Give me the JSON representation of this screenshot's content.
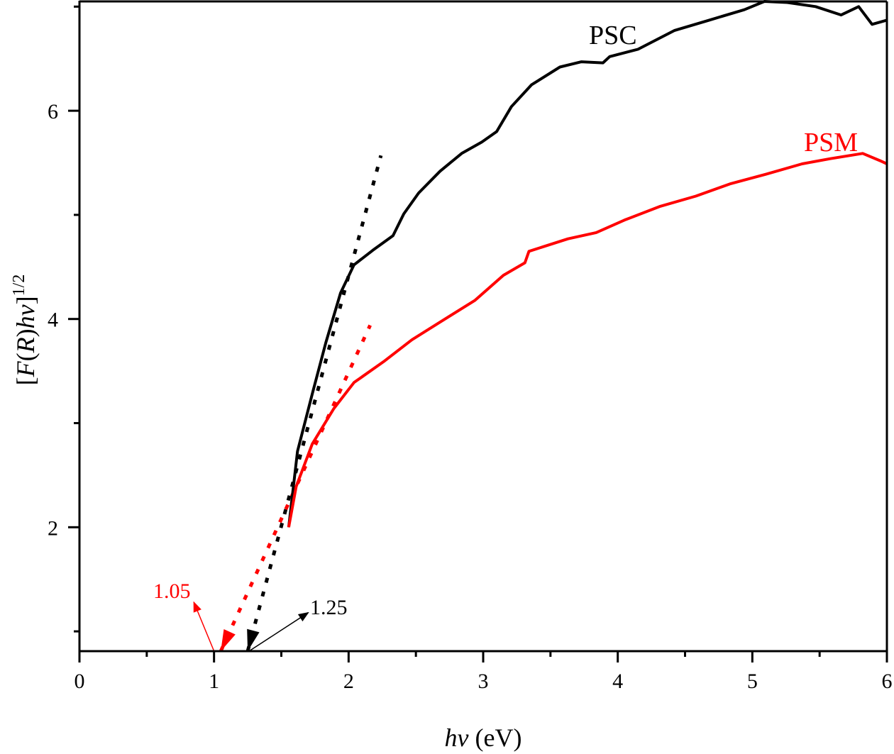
{
  "chart_data": {
    "type": "line",
    "title": "",
    "xlabel_italic": "hv",
    "xlabel_rest": " (eV)",
    "ylabel_parts": [
      "[",
      "F",
      "(",
      "R",
      ")",
      "hv",
      "]"
    ],
    "ylabel_superscript": "1/2",
    "xlim": [
      0,
      6
    ],
    "ylim": [
      0.81,
      7.05
    ],
    "xticks": [
      0,
      1,
      2,
      3,
      4,
      5,
      6
    ],
    "xtick_labels": [
      "0",
      "1",
      "2",
      "3",
      "4",
      "5",
      "6"
    ],
    "xminor_ticks": [
      0.5,
      1.5,
      2.5,
      3.5,
      4.5,
      5.5
    ],
    "yticks": [
      2,
      4,
      6
    ],
    "ytick_labels": [
      "2",
      "4",
      "6"
    ],
    "yminor_ticks": [
      1,
      3,
      5,
      7
    ],
    "grid": false,
    "legend": "none (inline series labels)",
    "series": [
      {
        "name": "PSC",
        "color": "#000000",
        "style": "solid",
        "label_position": "top-center",
        "x": [
          1.555,
          1.62,
          1.73,
          1.83,
          1.94,
          2.04,
          2.18,
          2.33,
          2.41,
          2.52,
          2.68,
          2.84,
          2.99,
          3.1,
          3.21,
          3.36,
          3.57,
          3.73,
          3.89,
          3.94,
          4.15,
          4.42,
          4.68,
          4.94,
          5.09,
          5.26,
          5.47,
          5.66,
          5.79,
          5.89,
          6.0
        ],
        "y": [
          2.0,
          2.73,
          3.28,
          3.77,
          4.25,
          4.52,
          4.66,
          4.8,
          5.01,
          5.21,
          5.42,
          5.59,
          5.7,
          5.8,
          6.04,
          6.25,
          6.42,
          6.47,
          6.46,
          6.52,
          6.59,
          6.77,
          6.87,
          6.97,
          7.05,
          7.04,
          7.0,
          6.92,
          7.0,
          6.83,
          6.87
        ]
      },
      {
        "name": "PSM",
        "color": "#ff0000",
        "style": "solid",
        "label_position": "right",
        "x": [
          1.555,
          1.61,
          1.73,
          1.89,
          2.04,
          2.26,
          2.47,
          2.68,
          2.94,
          3.15,
          3.31,
          3.34,
          3.63,
          3.84,
          4.05,
          4.31,
          4.58,
          4.84,
          5.1,
          5.37,
          5.58,
          5.82,
          5.95,
          6.0
        ],
        "y": [
          2.0,
          2.39,
          2.8,
          3.14,
          3.39,
          3.59,
          3.8,
          3.97,
          4.18,
          4.42,
          4.54,
          4.65,
          4.77,
          4.83,
          4.95,
          5.08,
          5.18,
          5.3,
          5.39,
          5.49,
          5.54,
          5.59,
          5.52,
          5.49
        ]
      }
    ],
    "fit_lines": [
      {
        "name": "PSC linear fit",
        "color": "#000000",
        "style": "dotted",
        "x": [
          1.25,
          2.24
        ],
        "y": [
          0.81,
          5.57
        ]
      },
      {
        "name": "PSM linear fit",
        "color": "#ff0000",
        "style": "dotted",
        "x": [
          1.05,
          2.16
        ],
        "y": [
          0.81,
          3.94
        ]
      }
    ],
    "annotations": [
      {
        "text": "1.05",
        "color": "#ff0000",
        "target_x": 1.05,
        "arrow_from": [
          1.0,
          0.81
        ],
        "arrow_to": [
          0.85,
          1.28
        ],
        "text_at": [
          0.55,
          1.41
        ]
      },
      {
        "text": "1.25",
        "color": "#000000",
        "target_x": 1.25,
        "arrow_from": [
          1.26,
          0.81
        ],
        "arrow_to": [
          1.7,
          1.18
        ],
        "text_at": [
          1.72,
          1.25
        ]
      }
    ]
  }
}
